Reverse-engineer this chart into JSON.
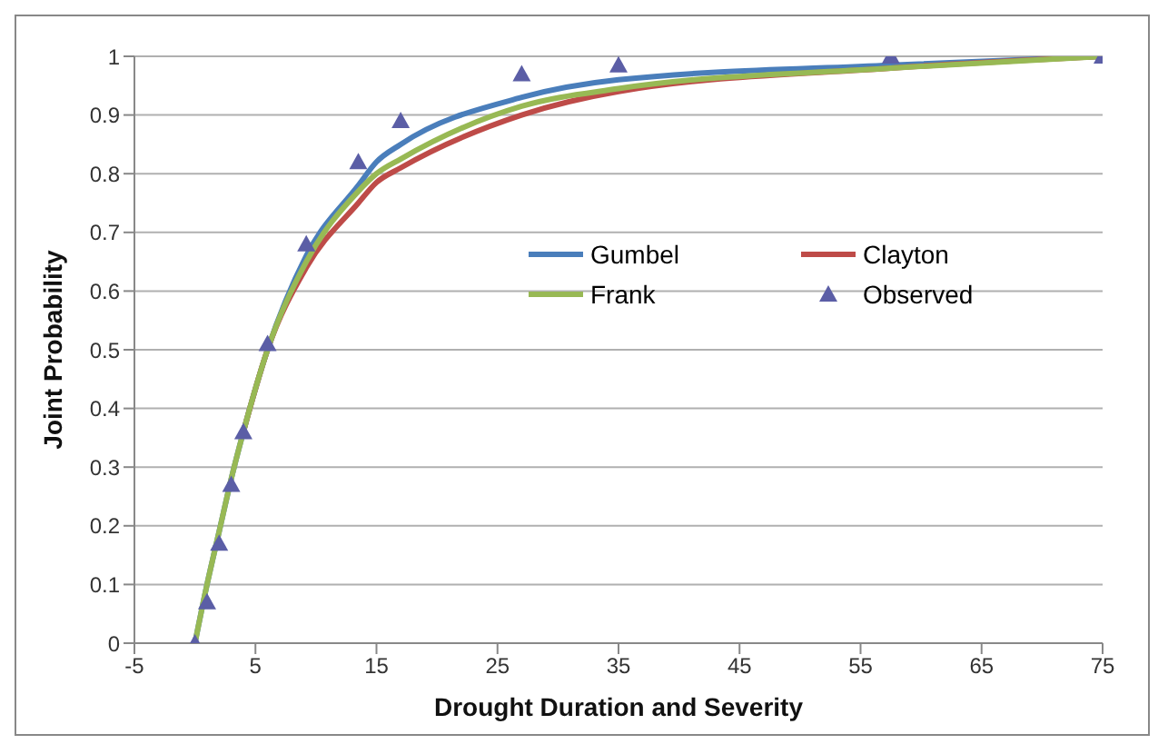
{
  "chart_data": {
    "type": "line",
    "xlabel": "Drought Duration and Severity",
    "ylabel": "Joint Probability",
    "xlim": [
      -5,
      75
    ],
    "xticks": [
      -5,
      5,
      15,
      25,
      35,
      45,
      55,
      65,
      75
    ],
    "ylim": [
      0,
      1
    ],
    "yticks": [
      0,
      0.1,
      0.2,
      0.3,
      0.4,
      0.5,
      0.6,
      0.7,
      0.8,
      0.9,
      1
    ],
    "grid": "y",
    "legend": "right",
    "marker": "none",
    "line_style": "solid",
    "x": [
      0,
      1,
      2,
      3,
      4,
      6,
      9.2,
      13.5,
      15,
      17,
      27,
      35,
      57.5,
      75
    ],
    "series": [
      {
        "name": "Gumbel",
        "color": "#4a7ebb",
        "values": [
          0,
          0.1,
          0.19,
          0.28,
          0.36,
          0.5,
          0.66,
          0.78,
          0.82,
          0.85,
          0.93,
          0.96,
          0.985,
          1
        ]
      },
      {
        "name": "Clayton",
        "color": "#be4b48",
        "values": [
          null,
          null,
          null,
          null,
          0.36,
          0.5,
          0.64,
          0.75,
          0.785,
          0.81,
          0.9,
          0.94,
          0.98,
          1
        ]
      },
      {
        "name": "Frank",
        "color": "#98b954",
        "values": [
          0,
          0.1,
          0.19,
          0.28,
          0.36,
          0.5,
          0.65,
          0.77,
          0.8,
          0.825,
          0.915,
          0.945,
          0.98,
          1
        ]
      },
      {
        "name": "Observed",
        "type": "scatter",
        "marker": "triangle",
        "color": "#5b5ea6",
        "x": [
          0,
          1,
          2,
          3,
          4,
          6,
          9.2,
          13.5,
          17,
          27,
          35,
          57.5,
          75
        ],
        "values": [
          0,
          0.07,
          0.17,
          0.27,
          0.36,
          0.51,
          0.68,
          0.82,
          0.89,
          0.97,
          0.985,
          1,
          1
        ]
      }
    ]
  }
}
